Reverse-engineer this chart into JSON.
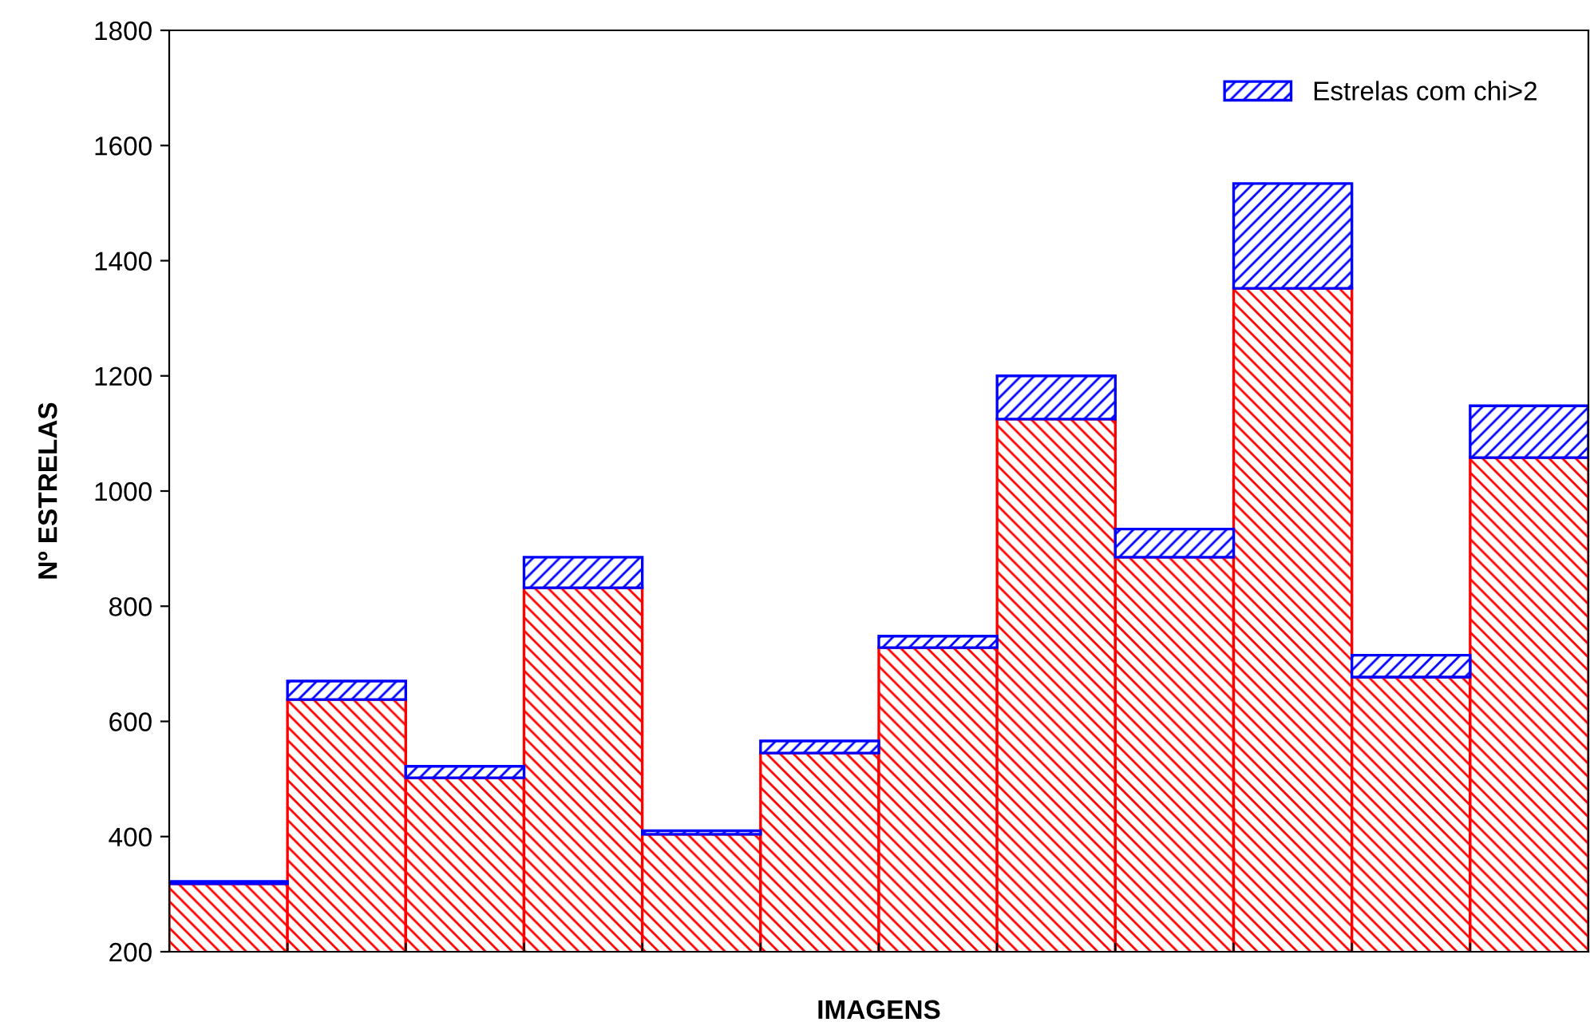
{
  "chart_data": {
    "type": "bar",
    "stacked": true,
    "xlabel": "IMAGENS",
    "ylabel": "Nº ESTRELAS",
    "categories": [
      null,
      null,
      null,
      null,
      null,
      null,
      null,
      null,
      null,
      null,
      null,
      null
    ],
    "series": [
      {
        "color": "#ff0000",
        "values": [
          318,
          638,
          502,
          832,
          404,
          545,
          728,
          1125,
          885,
          1352,
          677,
          1058
        ]
      },
      {
        "name": "Estrelas com chi>2",
        "color": "#0000ff",
        "base": [
          318,
          638,
          502,
          832,
          404,
          545,
          728,
          1125,
          885,
          1352,
          677,
          1058
        ],
        "values": [
          4,
          32,
          20,
          53,
          6,
          21,
          20,
          75,
          49,
          182,
          38,
          90
        ]
      }
    ],
    "ylim": [
      200,
      1800
    ],
    "yticks": [
      200,
      400,
      600,
      800,
      1000,
      1200,
      1400,
      1600,
      1800
    ],
    "grid": false,
    "legend": "top right"
  }
}
